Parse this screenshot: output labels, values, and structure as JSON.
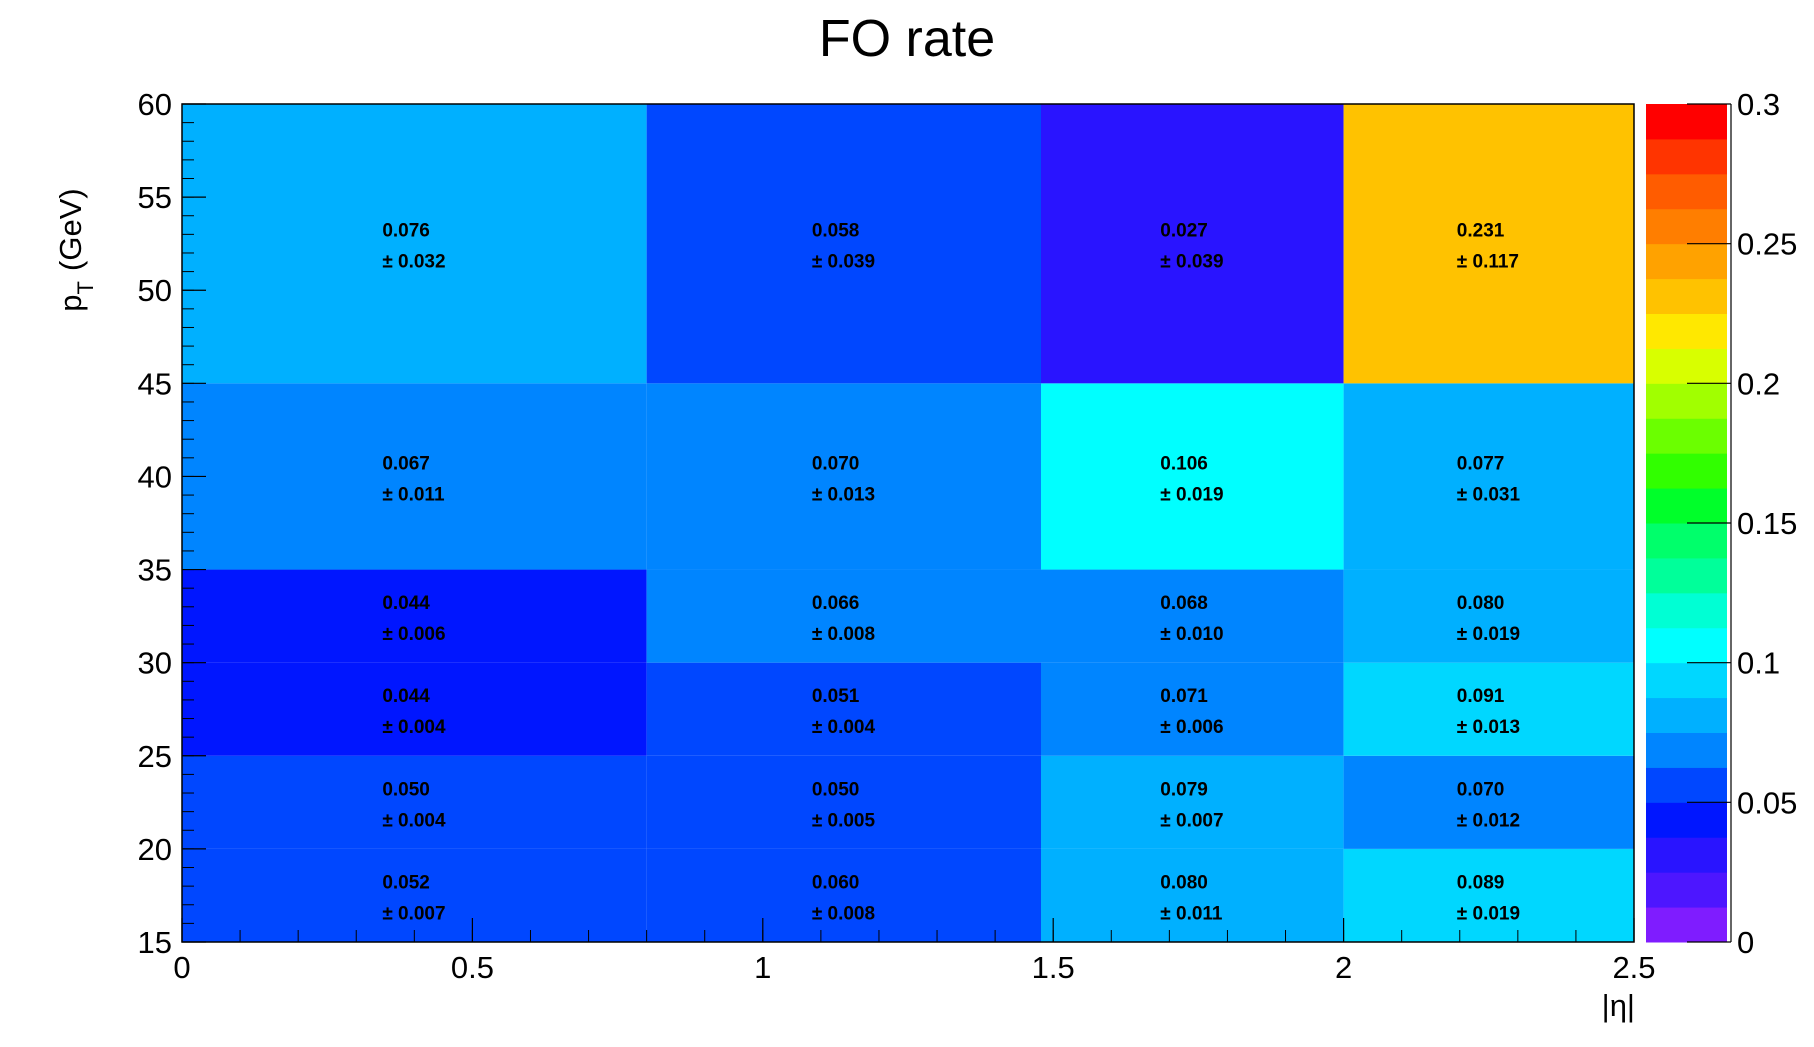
{
  "chart_data": {
    "type": "heatmap",
    "title": "FO rate",
    "xlabel": "|η|",
    "ylabel": {
      "main": "p",
      "subscript": "T",
      "unit": "(GeV)"
    },
    "x_edges": [
      0,
      0.8,
      1.479,
      2.0,
      2.5
    ],
    "y_edges": [
      15,
      20,
      25,
      30,
      35,
      45,
      60
    ],
    "xlim": [
      0,
      2.5
    ],
    "ylim": [
      15,
      60
    ],
    "zlim": [
      0,
      0.3
    ],
    "x_ticks": [
      0,
      0.5,
      1,
      1.5,
      2,
      2.5
    ],
    "x_tick_labels": [
      "0",
      "0.5",
      "1",
      "1.5",
      "2",
      "2.5"
    ],
    "y_ticks": [
      15,
      20,
      25,
      30,
      35,
      40,
      45,
      50,
      55,
      60
    ],
    "y_tick_labels": [
      "15",
      "20",
      "25",
      "30",
      "35",
      "40",
      "45",
      "50",
      "55",
      "60"
    ],
    "z_ticks": [
      0,
      0.05,
      0.1,
      0.15,
      0.2,
      0.25,
      0.3
    ],
    "z_tick_labels": [
      "0",
      "0.05",
      "0.1",
      "0.15",
      "0.2",
      "0.25",
      "0.3"
    ],
    "values": [
      [
        0.052,
        0.06,
        0.08,
        0.089
      ],
      [
        0.05,
        0.05,
        0.079,
        0.07
      ],
      [
        0.044,
        0.051,
        0.071,
        0.091
      ],
      [
        0.044,
        0.066,
        0.068,
        0.08
      ],
      [
        0.067,
        0.07,
        0.106,
        0.077
      ],
      [
        0.076,
        0.058,
        0.027,
        0.231
      ]
    ],
    "value_labels": [
      [
        "0.052",
        "0.060",
        "0.080",
        "0.089"
      ],
      [
        "0.050",
        "0.050",
        "0.079",
        "0.070"
      ],
      [
        "0.044",
        "0.051",
        "0.071",
        "0.091"
      ],
      [
        "0.044",
        "0.066",
        "0.068",
        "0.080"
      ],
      [
        "0.067",
        "0.070",
        "0.106",
        "0.077"
      ],
      [
        "0.076",
        "0.058",
        "0.027",
        "0.231"
      ]
    ],
    "error_labels": [
      [
        "± 0.007",
        "± 0.008",
        "± 0.011",
        "± 0.019"
      ],
      [
        "± 0.004",
        "± 0.005",
        "± 0.007",
        "± 0.012"
      ],
      [
        "± 0.004",
        "± 0.004",
        "± 0.006",
        "± 0.013"
      ],
      [
        "± 0.006",
        "± 0.008",
        "± 0.010",
        "± 0.019"
      ],
      [
        "± 0.011",
        "± 0.013",
        "± 0.019",
        "± 0.031"
      ],
      [
        "± 0.032",
        "± 0.039",
        "± 0.039",
        "± 0.117"
      ]
    ],
    "palette": [
      "#7f1cff",
      "#4d16ff",
      "#2914ff",
      "#0016ff",
      "#0047ff",
      "#0085ff",
      "#00b0ff",
      "#00d7ff",
      "#00ffff",
      "#00ffd4",
      "#00ff9a",
      "#00ff6b",
      "#00ff2a",
      "#31ff00",
      "#6bff00",
      "#a1ff00",
      "#d8ff00",
      "#ffe800",
      "#ffc200",
      "#ffa200",
      "#ff7e00",
      "#ff5c00",
      "#ff3400",
      "#ff0000"
    ],
    "grid": false
  }
}
